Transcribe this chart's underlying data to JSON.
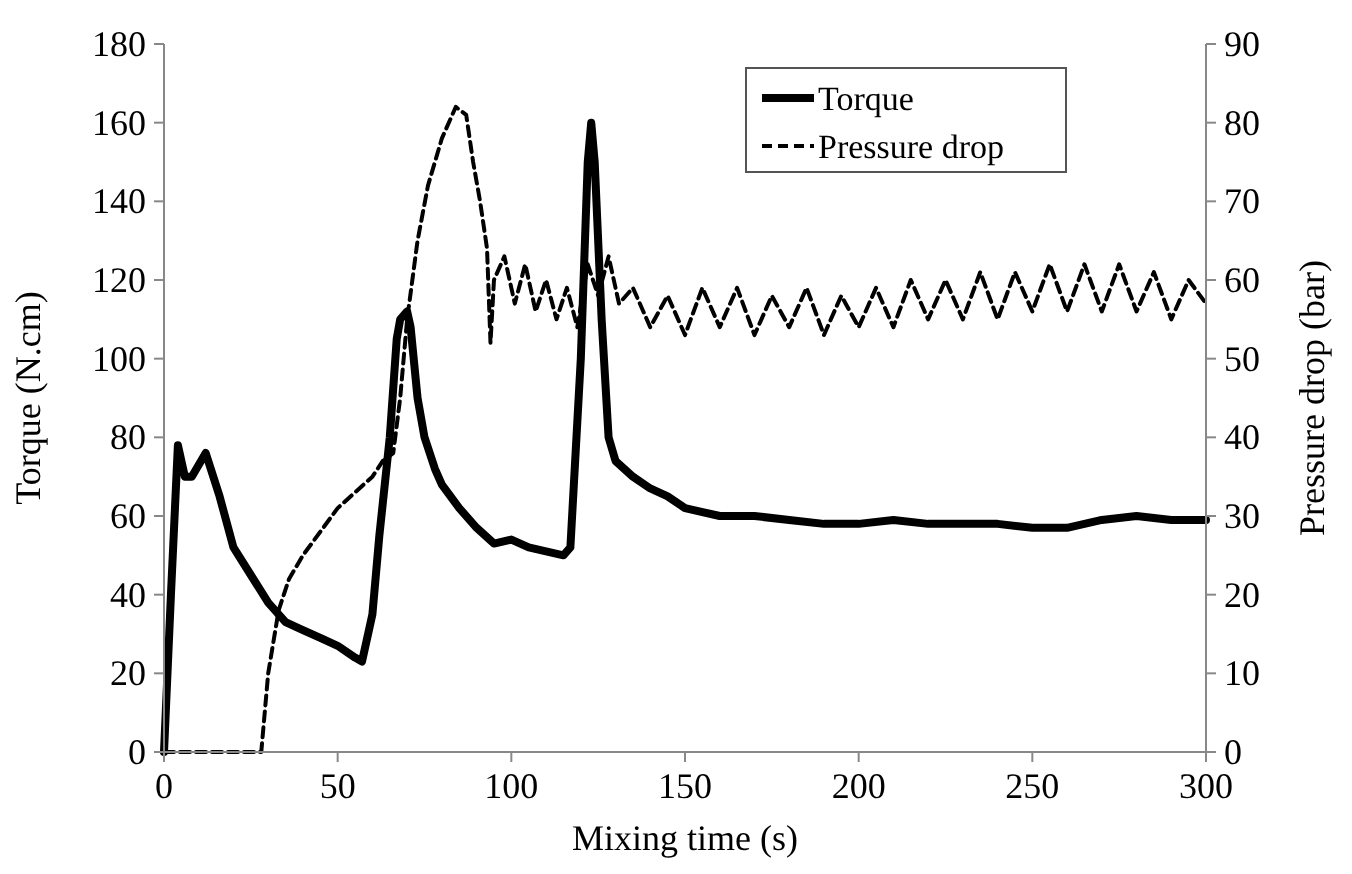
{
  "chart_data": {
    "type": "line",
    "xlabel": "Mixing time (s)",
    "ylabel": "Torque (N.cm)",
    "y2label": "Pressure drop (bar)",
    "xlim": [
      0,
      300
    ],
    "xticks": [
      0,
      50,
      100,
      150,
      200,
      250,
      300
    ],
    "ylim": [
      0,
      180
    ],
    "yticks": [
      0,
      20,
      40,
      60,
      80,
      100,
      120,
      140,
      160,
      180
    ],
    "y2lim": [
      0,
      90
    ],
    "y2ticks": [
      0,
      10,
      20,
      30,
      40,
      50,
      60,
      70,
      80,
      90
    ],
    "grid": false,
    "legend": "top right",
    "marker": "none",
    "series": [
      {
        "name": "Torque",
        "color": "#000000",
        "line_style": "solid",
        "x": [
          0,
          2,
          4,
          6,
          8,
          12,
          16,
          20,
          25,
          30,
          35,
          40,
          45,
          50,
          55,
          57,
          60,
          62,
          65,
          67,
          68,
          70,
          71,
          73,
          75,
          78,
          80,
          85,
          90,
          95,
          100,
          105,
          110,
          115,
          117,
          120,
          122,
          123,
          124,
          126,
          128,
          130,
          135,
          140,
          145,
          150,
          160,
          170,
          180,
          190,
          200,
          210,
          220,
          230,
          240,
          250,
          260,
          270,
          280,
          290,
          300
        ],
        "values": [
          0,
          40,
          78,
          70,
          70,
          76,
          65,
          52,
          45,
          38,
          33,
          31,
          29,
          27,
          24,
          23,
          35,
          55,
          80,
          105,
          110,
          112,
          108,
          90,
          80,
          72,
          68,
          62,
          57,
          53,
          54,
          52,
          51,
          50,
          52,
          100,
          150,
          160,
          150,
          110,
          80,
          74,
          70,
          67,
          65,
          62,
          60,
          60,
          59,
          58,
          58,
          59,
          58,
          58,
          58,
          57,
          57,
          59,
          60,
          59,
          59
        ]
      },
      {
        "name": "Pressure drop",
        "color": "#000000",
        "line_style": "dashed",
        "axis": "y2",
        "x": [
          0,
          28,
          30,
          33,
          36,
          40,
          45,
          50,
          55,
          60,
          63,
          66,
          68,
          70,
          73,
          76,
          80,
          84,
          87,
          89,
          91,
          93,
          94,
          95,
          98,
          101,
          104,
          107,
          110,
          113,
          116,
          119,
          122,
          125,
          128,
          131,
          135,
          140,
          145,
          150,
          155,
          160,
          165,
          170,
          175,
          180,
          185,
          190,
          195,
          200,
          205,
          210,
          215,
          220,
          225,
          230,
          235,
          240,
          245,
          250,
          255,
          260,
          265,
          270,
          275,
          280,
          285,
          290,
          295,
          300
        ],
        "values": [
          0,
          0,
          10,
          18,
          22,
          25,
          28,
          31,
          33,
          35,
          37,
          38,
          45,
          55,
          65,
          72,
          78,
          82,
          81,
          75,
          70,
          64,
          52,
          60,
          63,
          57,
          62,
          56,
          60,
          55,
          59,
          54,
          62,
          58,
          63,
          57,
          59,
          54,
          58,
          53,
          59,
          54,
          59,
          53,
          58,
          54,
          59,
          53,
          58,
          54,
          59,
          54,
          60,
          55,
          60,
          55,
          61,
          55,
          61,
          56,
          62,
          56,
          62,
          56,
          62,
          56,
          61,
          55,
          60,
          57
        ]
      }
    ]
  }
}
